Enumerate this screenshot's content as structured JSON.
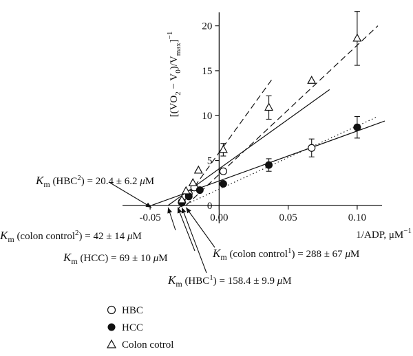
{
  "chart_data": {
    "type": "scatter",
    "xlabel": "1/ADP, μM",
    "xlabel_exponent": "−1",
    "ylabel": "[(VO",
    "ylabel_sub_2": "2",
    "ylabel_mid": " − V",
    "ylabel_sub_0": "0",
    "ylabel_mid2": ")/V",
    "ylabel_sub_max": "max",
    "ylabel_end": "]",
    "ylabel_exponent": "−1",
    "xlim": [
      -0.07,
      0.118
    ],
    "ylim": [
      -2.0,
      21.5
    ],
    "x_ticks": [
      {
        "value": -0.05,
        "label": "-0.05"
      },
      {
        "value": 0.0,
        "label": "0.00"
      },
      {
        "value": 0.05,
        "label": "0.05"
      },
      {
        "value": 0.1,
        "label": "0.10"
      }
    ],
    "y_ticks": [
      {
        "value": 0,
        "label": "0"
      },
      {
        "value": 5,
        "label": "5"
      },
      {
        "value": 10,
        "label": "10"
      },
      {
        "value": 15,
        "label": "15"
      },
      {
        "value": 20,
        "label": "20"
      }
    ],
    "series": [
      {
        "name": "HBC",
        "marker": "open-circle",
        "points": [
          {
            "x": -0.027,
            "y": 0.4
          },
          {
            "x": -0.022,
            "y": 1.3
          },
          {
            "x": -0.018,
            "y": 2.0
          },
          {
            "x": 0.003,
            "y": 3.8
          },
          {
            "x": 0.067,
            "y": 6.4,
            "err": 1.0
          }
        ]
      },
      {
        "name": "HCC",
        "marker": "filled-circle",
        "points": [
          {
            "x": -0.027,
            "y": 0.3
          },
          {
            "x": -0.022,
            "y": 1.0
          },
          {
            "x": -0.014,
            "y": 1.7
          },
          {
            "x": 0.003,
            "y": 2.4
          },
          {
            "x": 0.036,
            "y": 4.5,
            "err": 0.7
          },
          {
            "x": 0.1,
            "y": 8.7,
            "err": 1.2
          }
        ]
      },
      {
        "name": "Colon cotrol",
        "marker": "open-triangle",
        "points": [
          {
            "x": -0.027,
            "y": 0.6
          },
          {
            "x": -0.024,
            "y": 1.6
          },
          {
            "x": -0.019,
            "y": 2.5
          },
          {
            "x": -0.015,
            "y": 3.9
          },
          {
            "x": 0.003,
            "y": 6.2,
            "err": 0.7
          },
          {
            "x": 0.036,
            "y": 10.9,
            "err": 1.3
          },
          {
            "x": 0.067,
            "y": 13.9
          },
          {
            "x": 0.1,
            "y": 18.6,
            "err": 3.0
          }
        ]
      }
    ],
    "fit_lines": [
      {
        "style": "solid",
        "x": [
          -0.049,
          0.12
        ],
        "y": [
          0.0,
          9.4
        ]
      },
      {
        "style": "solid",
        "x": [
          -0.037,
          0.08
        ],
        "y": [
          0.0,
          12.9
        ]
      },
      {
        "style": "dotted",
        "x": [
          -0.03,
          0.115
        ],
        "y": [
          -0.3,
          9.9
        ]
      },
      {
        "style": "dashed",
        "x": [
          -0.024,
          0.115
        ],
        "y": [
          0.0,
          20.0
        ]
      },
      {
        "style": "dashed",
        "x": [
          -0.03,
          0.039
        ],
        "y": [
          -0.5,
          14.2
        ]
      }
    ],
    "annotations": [
      {
        "prefix": "K",
        "sub": "m",
        "text": " (HBC",
        "sup": "2",
        "rest": ") = 20.4 ± 6.2 ",
        "unit_mu": "μ",
        "unit_rest": "M",
        "arrow_to_x": -0.049
      },
      {
        "prefix": "K",
        "sub": "m",
        "text": " (colon control",
        "sup": "2",
        "rest": ") = 42 ± 14 ",
        "unit_mu": "μ",
        "unit_rest": "M",
        "arrow_to_x": -0.037
      },
      {
        "prefix": "K",
        "sub": "m",
        "text": " (HCC) = 69 ± 10 ",
        "sup": "",
        "rest": "",
        "unit_mu": "μ",
        "unit_rest": "M",
        "arrow_to_x": -0.03
      },
      {
        "prefix": "K",
        "sub": "m",
        "text": " (colon control",
        "sup": "1",
        "rest": ") = 288 ± 67 ",
        "unit_mu": "μ",
        "unit_rest": "M",
        "arrow_to_x": -0.024
      },
      {
        "prefix": "K",
        "sub": "m",
        "text": " (HBC",
        "sup": "1",
        "rest": ") = 158.4 ± 9.9 ",
        "unit_mu": "μ",
        "unit_rest": "M",
        "arrow_to_x": -0.027
      }
    ],
    "legend": {
      "placement": "bottom-left",
      "items": [
        "HBC",
        "HCC",
        "Colon cotrol"
      ]
    }
  }
}
